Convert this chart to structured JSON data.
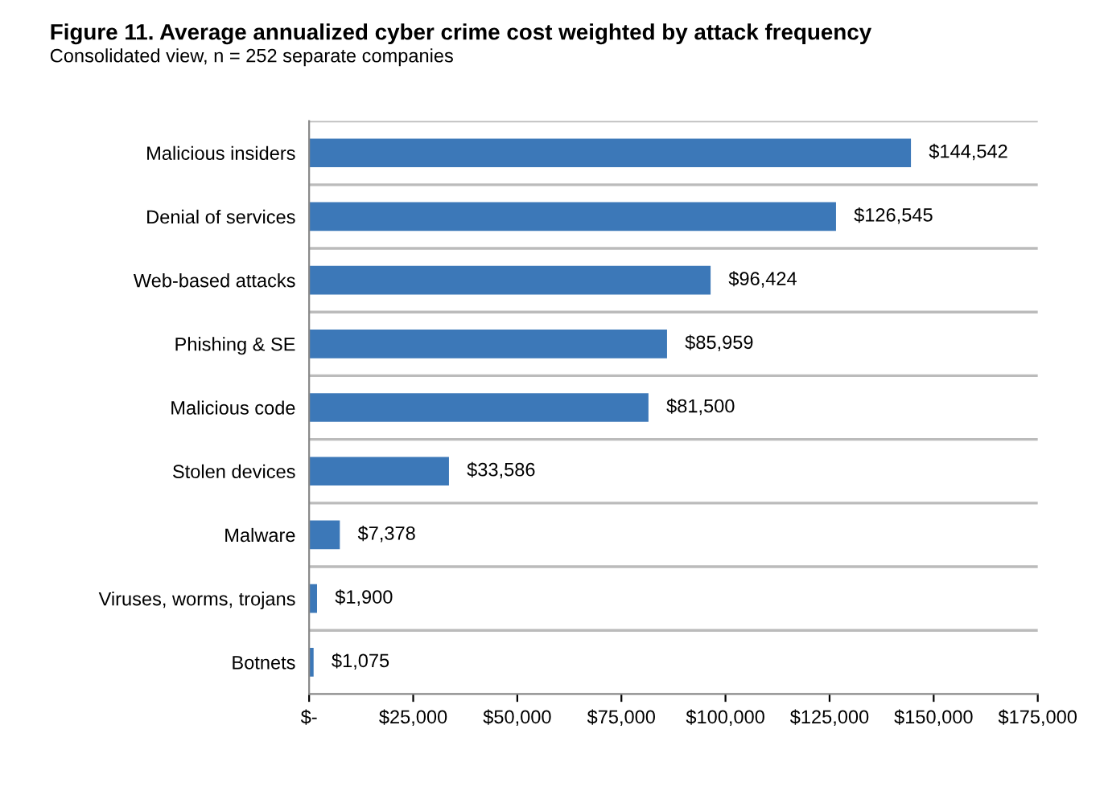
{
  "chart_data": {
    "type": "bar",
    "orientation": "horizontal",
    "title": "Figure 11. Average annualized cyber crime cost weighted by attack frequency",
    "subtitle": "Consolidated view, n = 252 separate companies",
    "categories": [
      "Malicious insiders",
      "Denial of services",
      "Web-based attacks",
      "Phishing & SE",
      "Malicious code",
      "Stolen devices",
      "Malware",
      "Viruses, worms, trojans",
      "Botnets"
    ],
    "values": [
      144542,
      126545,
      96424,
      85959,
      81500,
      33586,
      7378,
      1900,
      1075
    ],
    "value_labels": [
      "$144,542",
      "$126,545",
      "$96,424",
      "$85,959",
      "$81,500",
      "$33,586",
      "$7,378",
      "$1,900",
      "$1,075"
    ],
    "color": "#3c78b8",
    "xlim": [
      0,
      175000
    ],
    "xticks": [
      {
        "value": 0,
        "label": "$-"
      },
      {
        "value": 25000,
        "label": "$25,000"
      },
      {
        "value": 50000,
        "label": "$50,000"
      },
      {
        "value": 75000,
        "label": "$75,000"
      },
      {
        "value": 100000,
        "label": "$100,000"
      },
      {
        "value": 125000,
        "label": "$125,000"
      },
      {
        "value": 150000,
        "label": "$150,000"
      },
      {
        "value": 175000,
        "label": "$175,000"
      }
    ],
    "grid": "y"
  }
}
